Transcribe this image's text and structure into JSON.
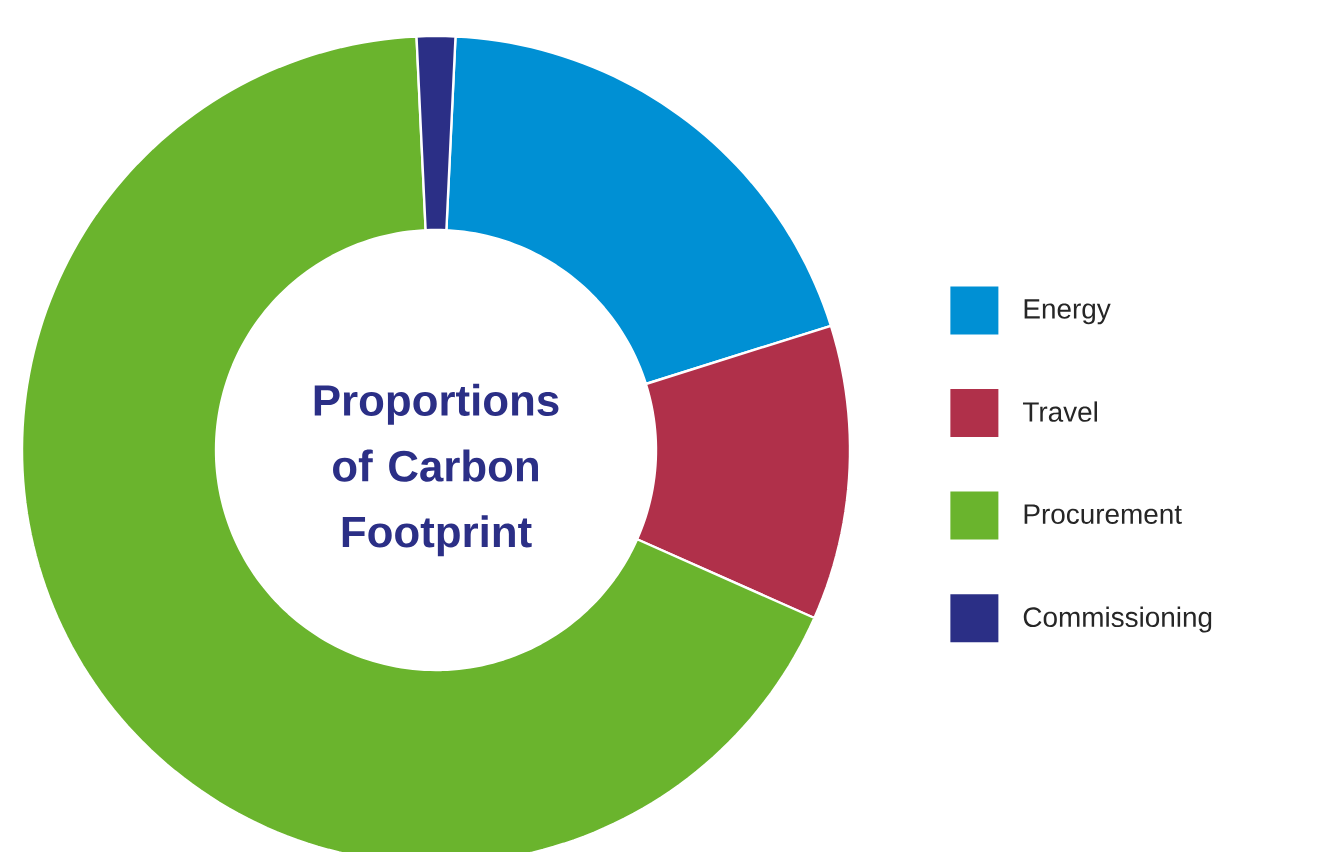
{
  "chart_data": {
    "type": "donut",
    "title": "Proportions of Carbon Footprint",
    "categories": [
      "Energy",
      "Travel",
      "Procurement",
      "Commissioning"
    ],
    "values": [
      19.4,
      11.5,
      67.6,
      1.5
    ],
    "colors": [
      "#0090d4",
      "#b0304a",
      "#6ab42d",
      "#2b2f86"
    ],
    "legend": "right"
  }
}
